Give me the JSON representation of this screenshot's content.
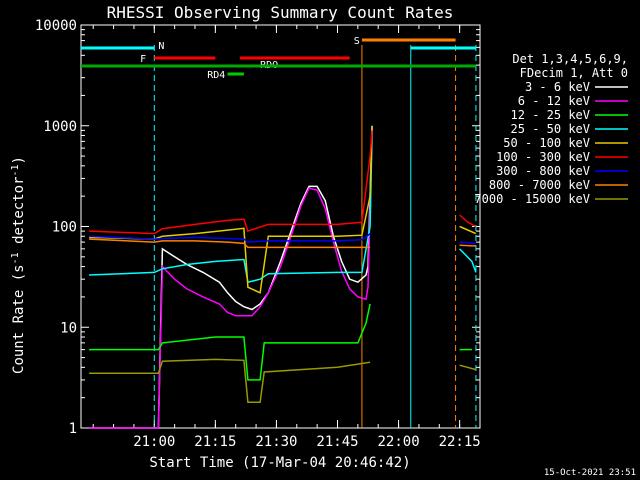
{
  "chart_data": {
    "type": "line",
    "title": "RHESSI Observing Summary Count Rates",
    "xlabel": "Start Time (17-Mar-04 20:46:42)",
    "ylabel_main": "Count Rate (s",
    "ylabel_sup1": "-1",
    "ylabel_mid": " detector",
    "ylabel_sup2": "-1",
    "ylabel_end": ")",
    "yscale": "log",
    "ylim": [
      1,
      10000
    ],
    "xlim_minutes": [
      -18,
      80
    ],
    "x_unit": "minutes after 21:00 UT",
    "x_ticks": [
      {
        "m": 0,
        "label": "21:00"
      },
      {
        "m": 15,
        "label": "21:15"
      },
      {
        "m": 30,
        "label": "21:30"
      },
      {
        "m": 45,
        "label": "21:45"
      },
      {
        "m": 60,
        "label": "22:00"
      },
      {
        "m": 75,
        "label": "22:15"
      }
    ],
    "y_ticks": [
      {
        "v": 1,
        "label": "1"
      },
      {
        "v": 10,
        "label": "10"
      },
      {
        "v": 100,
        "label": "100"
      },
      {
        "v": 1000,
        "label": "1000"
      },
      {
        "v": 10000,
        "label": "10000"
      }
    ],
    "legend_header": [
      "Det 1,3,4,5,6,9,",
      "FDecim 1, Att 0"
    ],
    "legend_position": "right",
    "timestamp": "15-Oct-2021 23:51",
    "series": [
      {
        "name": "3 - 6 keV",
        "color": "#ffffff",
        "points": [
          [
            -16,
            1
          ],
          [
            1,
            1
          ],
          [
            2,
            60
          ],
          [
            5,
            50
          ],
          [
            8,
            42
          ],
          [
            12,
            35
          ],
          [
            16,
            28
          ],
          [
            18,
            22
          ],
          [
            20,
            18
          ],
          [
            22,
            16
          ],
          [
            24,
            15
          ],
          [
            26,
            17
          ],
          [
            28,
            22
          ],
          [
            31,
            45
          ],
          [
            34,
            100
          ],
          [
            36,
            170
          ],
          [
            38,
            250
          ],
          [
            40,
            250
          ],
          [
            42,
            180
          ],
          [
            44,
            80
          ],
          [
            46,
            45
          ],
          [
            48,
            30
          ],
          [
            50,
            28
          ],
          [
            52,
            33
          ],
          [
            52.5,
            40
          ],
          [
            53.5,
            1000
          ]
        ]
      },
      {
        "name": "6 - 12 keV",
        "color": "#ff00ff",
        "points": [
          [
            -16,
            1
          ],
          [
            1,
            1
          ],
          [
            2,
            40
          ],
          [
            5,
            30
          ],
          [
            8,
            24
          ],
          [
            12,
            20
          ],
          [
            16,
            17
          ],
          [
            18,
            14
          ],
          [
            20,
            13
          ],
          [
            22,
            13
          ],
          [
            24,
            13
          ],
          [
            26,
            16
          ],
          [
            28,
            22
          ],
          [
            31,
            40
          ],
          [
            34,
            90
          ],
          [
            36,
            160
          ],
          [
            38,
            240
          ],
          [
            40,
            230
          ],
          [
            42,
            150
          ],
          [
            44,
            70
          ],
          [
            46,
            36
          ],
          [
            48,
            24
          ],
          [
            50,
            20
          ],
          [
            52,
            19
          ],
          [
            52.5,
            25
          ],
          [
            53.5,
            900
          ]
        ]
      },
      {
        "name": "12 - 25 keV",
        "color": "#00ff00",
        "points": [
          [
            -16,
            6
          ],
          [
            1,
            6
          ],
          [
            2,
            7
          ],
          [
            15,
            8
          ],
          [
            22,
            8
          ],
          [
            23,
            3
          ],
          [
            26,
            3
          ],
          [
            27,
            7
          ],
          [
            40,
            7
          ],
          [
            50,
            7
          ],
          [
            52,
            11
          ],
          [
            53,
            17
          ],
          [
            74,
            null
          ],
          [
            75,
            6
          ],
          [
            78,
            6
          ]
        ]
      },
      {
        "name": "25 - 50 keV",
        "color": "#00ffff",
        "points": [
          [
            -16,
            33
          ],
          [
            0,
            35
          ],
          [
            2,
            38
          ],
          [
            8,
            42
          ],
          [
            15,
            45
          ],
          [
            22,
            47
          ],
          [
            23,
            28
          ],
          [
            26,
            30
          ],
          [
            28,
            34
          ],
          [
            45,
            35
          ],
          [
            51,
            35
          ],
          [
            53,
            100
          ],
          [
            53.5,
            900
          ],
          [
            74,
            null
          ],
          [
            75,
            60
          ],
          [
            78,
            45
          ],
          [
            79,
            35
          ]
        ]
      },
      {
        "name": "50 - 100 keV",
        "color": "#e6cc00",
        "points": [
          [
            -16,
            78
          ],
          [
            0,
            75
          ],
          [
            2,
            80
          ],
          [
            10,
            85
          ],
          [
            18,
            92
          ],
          [
            22,
            96
          ],
          [
            23,
            25
          ],
          [
            26,
            22
          ],
          [
            28,
            80
          ],
          [
            45,
            80
          ],
          [
            51,
            82
          ],
          [
            53,
            200
          ],
          [
            53.5,
            1000
          ],
          [
            74,
            null
          ],
          [
            75,
            100
          ],
          [
            79,
            85
          ]
        ]
      },
      {
        "name": "100 - 300 keV",
        "color": "#ff0000",
        "points": [
          [
            -16,
            90
          ],
          [
            0,
            85
          ],
          [
            2,
            95
          ],
          [
            10,
            105
          ],
          [
            18,
            115
          ],
          [
            22,
            118
          ],
          [
            23,
            90
          ],
          [
            28,
            105
          ],
          [
            45,
            105
          ],
          [
            51,
            110
          ],
          [
            53,
            500
          ],
          [
            53.5,
            900
          ],
          [
            74,
            null
          ],
          [
            75,
            130
          ],
          [
            77,
            110
          ],
          [
            79,
            100
          ]
        ]
      },
      {
        "name": "300 - 800 keV",
        "color": "#0000ff",
        "points": [
          [
            -16,
            80
          ],
          [
            0,
            75
          ],
          [
            2,
            76
          ],
          [
            10,
            78
          ],
          [
            18,
            76
          ],
          [
            22,
            75
          ],
          [
            23,
            70
          ],
          [
            28,
            72
          ],
          [
            45,
            72
          ],
          [
            51,
            74
          ],
          [
            53,
            85
          ],
          [
            74,
            null
          ],
          [
            75,
            70
          ],
          [
            79,
            68
          ]
        ]
      },
      {
        "name": "800 - 7000 keV",
        "color": "#ff8000",
        "points": [
          [
            -16,
            75
          ],
          [
            0,
            70
          ],
          [
            2,
            72
          ],
          [
            10,
            72
          ],
          [
            18,
            70
          ],
          [
            22,
            68
          ],
          [
            23,
            62
          ],
          [
            28,
            62
          ],
          [
            45,
            62
          ],
          [
            51,
            62
          ],
          [
            53,
            62
          ],
          [
            74,
            null
          ],
          [
            75,
            65
          ],
          [
            79,
            64
          ]
        ]
      },
      {
        "name": "7000 - 15000 keV",
        "color": "#999900",
        "points": [
          [
            -16,
            3.5
          ],
          [
            1,
            3.5
          ],
          [
            2,
            4.6
          ],
          [
            15,
            4.8
          ],
          [
            22,
            4.7
          ],
          [
            23,
            1.8
          ],
          [
            26,
            1.8
          ],
          [
            27,
            3.6
          ],
          [
            45,
            4.0
          ],
          [
            53,
            4.5
          ],
          [
            74,
            null
          ],
          [
            75,
            4.2
          ],
          [
            79,
            3.8
          ]
        ]
      }
    ],
    "flag_bars": [
      {
        "label": "N",
        "color": "#00ffff",
        "segments": [
          [
            -18,
            0
          ],
          [
            63,
            79
          ]
        ],
        "label_m": 1,
        "row": "top"
      },
      {
        "label": "F",
        "color": "#ff0000",
        "segments": [
          [
            0,
            15
          ],
          [
            21,
            48
          ]
        ],
        "label_m": -2,
        "row": "F"
      },
      {
        "label": "RDO",
        "color": "#00ff00",
        "segments": [],
        "label_m": 26,
        "row": "F"
      },
      {
        "label": "S",
        "color": "#ff8000",
        "segments": [
          [
            51,
            74
          ]
        ],
        "label_m": 49,
        "row": "S"
      },
      {
        "label": "RD4",
        "color": "#00cc00",
        "segments": [
          [
            18,
            22
          ]
        ],
        "label_m": 13,
        "row": "RD4"
      },
      {
        "label": "",
        "color": "#00aa00",
        "segments": [
          [
            -18,
            79
          ]
        ],
        "label_m": null,
        "row": "green"
      }
    ],
    "vlines": [
      {
        "m": 0,
        "color": "#00ffff",
        "dashed": true
      },
      {
        "m": 51,
        "color": "#ff8000",
        "dashed": false
      },
      {
        "m": 63,
        "color": "#00ffff",
        "dashed": false
      },
      {
        "m": 74,
        "color": "#ff8000",
        "dashed": true
      },
      {
        "m": 79,
        "color": "#00ffff",
        "dashed": true
      }
    ]
  }
}
